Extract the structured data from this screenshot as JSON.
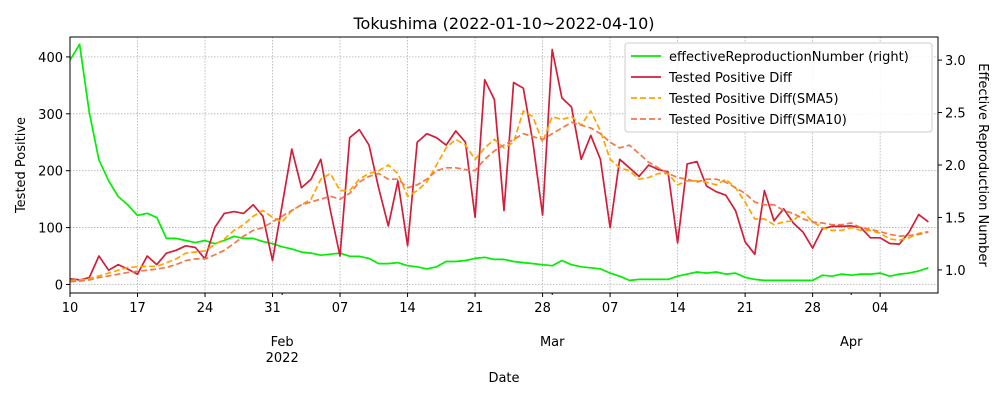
{
  "chart_data": {
    "type": "line",
    "title": "Tokushima (2022-01-10~2022-04-10)",
    "xlabel": "Date",
    "ylabel": "Tested Positive",
    "ylabel_right": "Effective Reproduction Number",
    "x_start": "2022-01-10",
    "x_end": "2022-04-10",
    "ylim": [
      -15,
      435
    ],
    "ylim_right": [
      0.78,
      3.22
    ],
    "yticks": [
      0,
      100,
      200,
      300,
      400
    ],
    "yticks_right": [
      1.0,
      1.5,
      2.0,
      2.5,
      3.0
    ],
    "ytick_labels_right": [
      "1.0",
      "1.5",
      "2.0",
      "2.5",
      "3.0"
    ],
    "xticks": [
      {
        "date": "2022-01-10",
        "label": "10",
        "sub": ""
      },
      {
        "date": "2022-01-17",
        "label": "17",
        "sub": ""
      },
      {
        "date": "2022-01-24",
        "label": "24",
        "sub": ""
      },
      {
        "date": "2022-01-31",
        "label": "31",
        "sub": ""
      },
      {
        "date": "2022-02-01",
        "label": "",
        "sub": "Feb\n2022"
      },
      {
        "date": "2022-02-07",
        "label": "07",
        "sub": ""
      },
      {
        "date": "2022-02-14",
        "label": "14",
        "sub": ""
      },
      {
        "date": "2022-02-21",
        "label": "21",
        "sub": ""
      },
      {
        "date": "2022-02-28",
        "label": "28",
        "sub": ""
      },
      {
        "date": "2022-03-01",
        "label": "",
        "sub": "Mar"
      },
      {
        "date": "2022-03-07",
        "label": "07",
        "sub": ""
      },
      {
        "date": "2022-03-14",
        "label": "14",
        "sub": ""
      },
      {
        "date": "2022-03-21",
        "label": "21",
        "sub": ""
      },
      {
        "date": "2022-03-28",
        "label": "28",
        "sub": ""
      },
      {
        "date": "2022-04-01",
        "label": "",
        "sub": "Apr"
      },
      {
        "date": "2022-04-04",
        "label": "04",
        "sub": ""
      }
    ],
    "grid": true,
    "legend_position": "top-right",
    "series": [
      {
        "name": "effectiveReproductionNumber (right)",
        "axis": "right",
        "color": "#00ee00",
        "dash": "solid",
        "values": [
          3.0,
          3.15,
          2.5,
          2.05,
          1.85,
          1.7,
          1.62,
          1.52,
          1.54,
          1.5,
          1.3,
          1.3,
          1.28,
          1.26,
          1.28,
          1.25,
          1.28,
          1.32,
          1.3,
          1.3,
          1.27,
          1.25,
          1.22,
          1.2,
          1.17,
          1.16,
          1.14,
          1.15,
          1.16,
          1.13,
          1.13,
          1.11,
          1.06,
          1.06,
          1.07,
          1.04,
          1.03,
          1.01,
          1.03,
          1.08,
          1.08,
          1.09,
          1.11,
          1.12,
          1.1,
          1.1,
          1.08,
          1.07,
          1.06,
          1.05,
          1.04,
          1.09,
          1.05,
          1.03,
          1.02,
          1.01,
          0.97,
          0.94,
          0.9,
          0.91,
          0.91,
          0.91,
          0.91,
          0.94,
          0.96,
          0.98,
          0.97,
          0.98,
          0.96,
          0.97,
          0.93,
          0.91,
          0.9,
          0.9,
          0.9,
          0.9,
          0.9,
          0.9,
          0.95,
          0.94,
          0.96,
          0.95,
          0.96,
          0.96,
          0.97,
          0.94,
          0.96,
          0.97,
          0.99,
          1.02
        ]
      },
      {
        "name": "Tested Positive Diff",
        "axis": "left",
        "color": "#d21e3a",
        "dash": "solid",
        "values": [
          10,
          8,
          12,
          50,
          25,
          35,
          27,
          18,
          50,
          35,
          55,
          60,
          68,
          65,
          45,
          100,
          125,
          128,
          125,
          140,
          120,
          42,
          140,
          238,
          170,
          185,
          220,
          130,
          50,
          258,
          272,
          245,
          170,
          103,
          182,
          68,
          250,
          265,
          258,
          245,
          270,
          250,
          118,
          360,
          325,
          130,
          355,
          345,
          250,
          122,
          413,
          328,
          312,
          220,
          262,
          220,
          100,
          220,
          205,
          190,
          210,
          202,
          198,
          73,
          212,
          216,
          173,
          163,
          157,
          130,
          75,
          53,
          165,
          112,
          133,
          108,
          92,
          64,
          98,
          102,
          102,
          103,
          100,
          82,
          82,
          72,
          71,
          92,
          123,
          110
        ]
      },
      {
        "name": "Tested Positive Diff(SMA5)",
        "axis": "left",
        "color": "#ffa500",
        "dash": "dashed",
        "values": [
          7,
          8,
          10,
          15,
          20,
          25,
          30,
          31,
          32,
          32,
          38,
          45,
          55,
          57,
          59,
          70,
          80,
          95,
          105,
          120,
          130,
          118,
          110,
          130,
          140,
          150,
          185,
          195,
          165,
          165,
          185,
          195,
          200,
          210,
          195,
          155,
          165,
          180,
          210,
          240,
          255,
          245,
          220,
          240,
          255,
          240,
          250,
          305,
          295,
          250,
          295,
          290,
          295,
          280,
          305,
          270,
          220,
          205,
          200,
          185,
          188,
          195,
          195,
          175,
          182,
          182,
          180,
          175,
          185,
          170,
          145,
          115,
          115,
          105,
          110,
          112,
          128,
          110,
          100,
          95,
          95,
          100,
          95,
          95,
          90,
          80,
          78,
          82,
          90,
          93
        ]
      },
      {
        "name": "Tested Positive Diff(SMA10)",
        "axis": "left",
        "color": "#f4784a",
        "dash": "dashed",
        "values": [
          5,
          6,
          8,
          12,
          15,
          18,
          21,
          23,
          25,
          27,
          30,
          35,
          42,
          45,
          45,
          52,
          60,
          72,
          85,
          95,
          100,
          110,
          120,
          130,
          140,
          145,
          150,
          155,
          150,
          160,
          180,
          190,
          195,
          185,
          185,
          170,
          175,
          185,
          200,
          205,
          205,
          202,
          200,
          220,
          235,
          245,
          255,
          265,
          260,
          255,
          265,
          275,
          285,
          280,
          275,
          265,
          250,
          240,
          245,
          230,
          215,
          205,
          195,
          188,
          185,
          180,
          185,
          185,
          180,
          170,
          160,
          145,
          140,
          140,
          130,
          125,
          115,
          110,
          108,
          105,
          105,
          108,
          100,
          97,
          93,
          88,
          85,
          86,
          88,
          92
        ]
      }
    ]
  }
}
